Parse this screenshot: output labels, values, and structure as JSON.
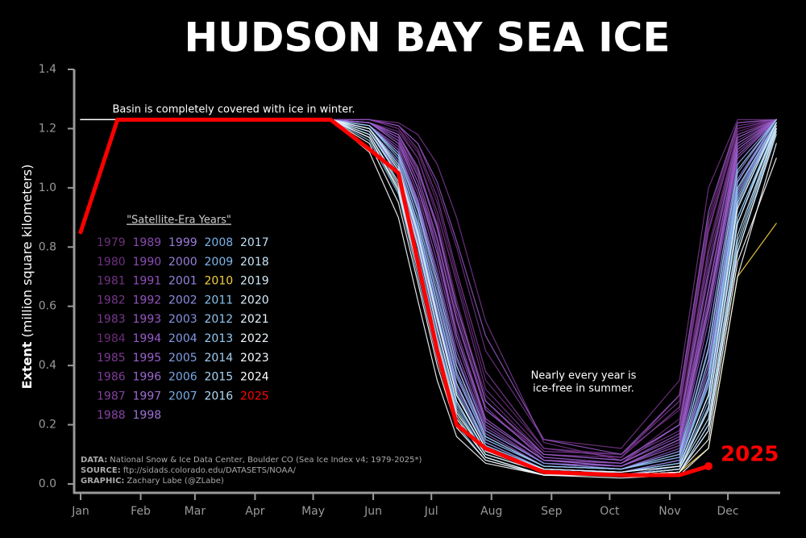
{
  "chart_data": {
    "type": "line",
    "title": "HUDSON BAY SEA ICE",
    "ylabel_bold": "Extent",
    "ylabel": "(million square kilometers)",
    "annotations": [
      "Basin is completely covered with ice in winter.",
      "Nearly every year is",
      "ice-free in summer."
    ],
    "legend_title": "\"Satellite-Era Years\"",
    "credits": [
      {
        "label": "DATA:",
        "text": "National Snow & Ice Data Center, Boulder CO (Sea Ice Index v4; 1979-2025*)"
      },
      {
        "label": "SOURCE:",
        "text": "ftp://sidads.colorado.edu/DATASETS/NOAA/"
      },
      {
        "label": "GRAPHIC:",
        "text": "Zachary Labe (@ZLabe)"
      }
    ],
    "xlim": [
      -2,
      362
    ],
    "xticks": [
      {
        "value": 1,
        "label": "Jan"
      },
      {
        "value": 32,
        "label": "Feb"
      },
      {
        "value": 60,
        "label": "Mar"
      },
      {
        "value": 91,
        "label": "Apr"
      },
      {
        "value": 121,
        "label": "May"
      },
      {
        "value": 152,
        "label": "Jun"
      },
      {
        "value": 182,
        "label": "Jul"
      },
      {
        "value": 213,
        "label": "Aug"
      },
      {
        "value": 244,
        "label": "Sep"
      },
      {
        "value": 274,
        "label": "Oct"
      },
      {
        "value": 305,
        "label": "Nov"
      },
      {
        "value": 335,
        "label": "Dec"
      }
    ],
    "ylim": [
      0,
      1.4
    ],
    "yticks": [
      {
        "value": 0,
        "label": "0.0"
      },
      0.2,
      0.4,
      0.6,
      0.8,
      {
        "value": 1,
        "label": "1.0"
      },
      1.2,
      1.4
    ],
    "x": [
      1,
      20,
      130,
      150,
      165,
      175,
      185,
      195,
      210,
      240,
      280,
      310,
      325,
      340,
      360
    ],
    "series": [
      {
        "name": "1979",
        "color": "#6b2f7a",
        "values": [
          1.23,
          1.23,
          1.23,
          1.23,
          1.2,
          1.12,
          0.95,
          0.7,
          0.35,
          0.12,
          0.1,
          0.25,
          0.85,
          1.2,
          1.23
        ]
      },
      {
        "name": "1980",
        "color": "#6e2f80",
        "values": [
          1.23,
          1.23,
          1.23,
          1.22,
          1.18,
          1.05,
          0.88,
          0.6,
          0.3,
          0.1,
          0.09,
          0.3,
          0.9,
          1.22,
          1.23
        ]
      },
      {
        "name": "1981",
        "color": "#723385",
        "values": [
          1.23,
          1.23,
          1.23,
          1.23,
          1.21,
          1.15,
          1.0,
          0.8,
          0.45,
          0.15,
          0.12,
          0.35,
          1.0,
          1.23,
          1.23
        ]
      },
      {
        "name": "1982",
        "color": "#75358a",
        "values": [
          1.23,
          1.23,
          1.23,
          1.23,
          1.22,
          1.18,
          1.08,
          0.9,
          0.55,
          0.14,
          0.08,
          0.2,
          0.75,
          1.18,
          1.23
        ]
      },
      {
        "name": "1983",
        "color": "#78378f",
        "values": [
          1.23,
          1.23,
          1.23,
          1.22,
          1.19,
          1.1,
          0.92,
          0.68,
          0.32,
          0.11,
          0.1,
          0.28,
          0.88,
          1.21,
          1.23
        ]
      },
      {
        "name": "1984",
        "color": "#6a2c78",
        "values": [
          1.23,
          1.23,
          1.23,
          1.23,
          1.2,
          1.1,
          0.9,
          0.62,
          0.28,
          0.09,
          0.07,
          0.22,
          0.8,
          1.19,
          1.23
        ]
      },
      {
        "name": "1985",
        "color": "#7c3a94",
        "values": [
          1.23,
          1.23,
          1.23,
          1.22,
          1.17,
          1.02,
          0.82,
          0.55,
          0.25,
          0.1,
          0.08,
          0.18,
          0.7,
          1.16,
          1.23
        ]
      },
      {
        "name": "1986",
        "color": "#7f3c99",
        "values": [
          1.23,
          1.23,
          1.23,
          1.23,
          1.21,
          1.13,
          0.97,
          0.72,
          0.38,
          0.12,
          0.09,
          0.26,
          0.86,
          1.2,
          1.23
        ]
      },
      {
        "name": "1987",
        "color": "#82409e",
        "values": [
          1.23,
          1.23,
          1.23,
          1.22,
          1.18,
          1.06,
          0.86,
          0.58,
          0.26,
          0.08,
          0.07,
          0.2,
          0.78,
          1.18,
          1.23
        ]
      },
      {
        "name": "1988",
        "color": "#8543a3",
        "values": [
          1.23,
          1.23,
          1.23,
          1.22,
          1.16,
          1.0,
          0.8,
          0.52,
          0.22,
          0.08,
          0.06,
          0.15,
          0.65,
          1.15,
          1.23
        ]
      },
      {
        "name": "1989",
        "color": "#8a48b0",
        "values": [
          1.23,
          1.23,
          1.23,
          1.21,
          1.14,
          0.98,
          0.75,
          0.48,
          0.2,
          0.07,
          0.06,
          0.14,
          0.6,
          1.12,
          1.23
        ]
      },
      {
        "name": "1990",
        "color": "#8d4cb6",
        "values": [
          1.23,
          1.23,
          1.23,
          1.22,
          1.16,
          1.02,
          0.8,
          0.5,
          0.22,
          0.08,
          0.07,
          0.16,
          0.62,
          1.14,
          1.23
        ]
      },
      {
        "name": "1991",
        "color": "#904fbb",
        "values": [
          1.23,
          1.23,
          1.23,
          1.21,
          1.12,
          0.95,
          0.7,
          0.42,
          0.18,
          0.07,
          0.05,
          0.12,
          0.55,
          1.1,
          1.23
        ]
      },
      {
        "name": "1992",
        "color": "#9353c0",
        "values": [
          1.23,
          1.23,
          1.23,
          1.23,
          1.21,
          1.15,
          1.02,
          0.82,
          0.5,
          0.15,
          0.1,
          0.3,
          0.92,
          1.22,
          1.23
        ]
      },
      {
        "name": "1993",
        "color": "#9657c4",
        "values": [
          1.23,
          1.23,
          1.23,
          1.21,
          1.13,
          0.96,
          0.72,
          0.45,
          0.19,
          0.07,
          0.06,
          0.13,
          0.58,
          1.11,
          1.23
        ]
      },
      {
        "name": "1994",
        "color": "#985bc8",
        "values": [
          1.23,
          1.23,
          1.23,
          1.22,
          1.17,
          1.04,
          0.83,
          0.56,
          0.25,
          0.09,
          0.07,
          0.17,
          0.66,
          1.15,
          1.23
        ]
      },
      {
        "name": "1995",
        "color": "#9a60cc",
        "values": [
          1.23,
          1.23,
          1.23,
          1.21,
          1.12,
          0.94,
          0.68,
          0.4,
          0.17,
          0.06,
          0.05,
          0.11,
          0.5,
          1.08,
          1.23
        ]
      },
      {
        "name": "1996",
        "color": "#9c65d0",
        "values": [
          1.23,
          1.23,
          1.23,
          1.22,
          1.18,
          1.07,
          0.87,
          0.6,
          0.28,
          0.1,
          0.08,
          0.2,
          0.72,
          1.17,
          1.23
        ]
      },
      {
        "name": "1997",
        "color": "#9d6ad3",
        "values": [
          1.23,
          1.23,
          1.23,
          1.22,
          1.15,
          1.0,
          0.78,
          0.5,
          0.21,
          0.08,
          0.06,
          0.15,
          0.6,
          1.13,
          1.23
        ]
      },
      {
        "name": "1998",
        "color": "#9e70d6",
        "values": [
          1.23,
          1.23,
          1.23,
          1.2,
          1.08,
          0.88,
          0.6,
          0.33,
          0.14,
          0.05,
          0.04,
          0.08,
          0.4,
          1.02,
          1.22
        ]
      },
      {
        "name": "1999",
        "color": "#9b7ad9",
        "values": [
          1.23,
          1.23,
          1.23,
          1.19,
          1.05,
          0.82,
          0.55,
          0.3,
          0.12,
          0.05,
          0.04,
          0.07,
          0.35,
          0.98,
          1.22
        ]
      },
      {
        "name": "2000",
        "color": "#977fdc",
        "values": [
          1.23,
          1.23,
          1.23,
          1.2,
          1.09,
          0.9,
          0.63,
          0.36,
          0.15,
          0.06,
          0.05,
          0.09,
          0.42,
          1.03,
          1.23
        ]
      },
      {
        "name": "2001",
        "color": "#9286de",
        "values": [
          1.23,
          1.23,
          1.23,
          1.19,
          1.06,
          0.85,
          0.58,
          0.32,
          0.13,
          0.05,
          0.04,
          0.08,
          0.38,
          1.0,
          1.22
        ]
      },
      {
        "name": "2002",
        "color": "#8d8ce0",
        "values": [
          1.23,
          1.23,
          1.23,
          1.21,
          1.11,
          0.92,
          0.66,
          0.38,
          0.16,
          0.06,
          0.05,
          0.1,
          0.45,
          1.05,
          1.23
        ]
      },
      {
        "name": "2003",
        "color": "#8893e2",
        "values": [
          1.23,
          1.23,
          1.23,
          1.2,
          1.08,
          0.87,
          0.6,
          0.34,
          0.14,
          0.05,
          0.04,
          0.07,
          0.36,
          0.99,
          1.22
        ]
      },
      {
        "name": "2004",
        "color": "#8399e4",
        "values": [
          1.23,
          1.23,
          1.23,
          1.21,
          1.12,
          0.95,
          0.7,
          0.43,
          0.18,
          0.07,
          0.05,
          0.11,
          0.5,
          1.08,
          1.23
        ]
      },
      {
        "name": "2005",
        "color": "#7e9fe5",
        "values": [
          1.23,
          1.23,
          1.23,
          1.19,
          1.04,
          0.8,
          0.52,
          0.28,
          0.11,
          0.04,
          0.03,
          0.06,
          0.3,
          0.94,
          1.21
        ]
      },
      {
        "name": "2006",
        "color": "#7aa5e7",
        "values": [
          1.23,
          1.23,
          1.23,
          1.18,
          1.02,
          0.78,
          0.5,
          0.26,
          0.1,
          0.04,
          0.03,
          0.05,
          0.28,
          0.9,
          1.2
        ]
      },
      {
        "name": "2007",
        "color": "#78abe8",
        "values": [
          1.23,
          1.23,
          1.23,
          1.19,
          1.05,
          0.83,
          0.56,
          0.3,
          0.12,
          0.04,
          0.04,
          0.07,
          0.33,
          0.96,
          1.22
        ]
      },
      {
        "name": "2008",
        "color": "#7ab2ea",
        "values": [
          1.23,
          1.23,
          1.23,
          1.2,
          1.07,
          0.86,
          0.58,
          0.31,
          0.12,
          0.05,
          0.04,
          0.07,
          0.34,
          0.97,
          1.22
        ]
      },
      {
        "name": "2009",
        "color": "#7fb8ec",
        "values": [
          1.23,
          1.23,
          1.23,
          1.21,
          1.1,
          0.9,
          0.64,
          0.37,
          0.15,
          0.06,
          0.05,
          0.09,
          0.42,
          1.02,
          1.23
        ]
      },
      {
        "name": "2010",
        "color": "#f5d142",
        "values": [
          1.23,
          1.23,
          1.23,
          1.17,
          1.0,
          0.74,
          0.46,
          0.24,
          0.1,
          0.04,
          0.03,
          0.04,
          0.12,
          0.7,
          0.88
        ]
      },
      {
        "name": "2011",
        "color": "#88c2ee",
        "values": [
          1.23,
          1.23,
          1.23,
          1.19,
          1.04,
          0.8,
          0.52,
          0.27,
          0.11,
          0.04,
          0.03,
          0.05,
          0.25,
          0.9,
          1.21
        ]
      },
      {
        "name": "2012",
        "color": "#8fc6f0",
        "values": [
          1.23,
          1.23,
          1.23,
          1.16,
          0.98,
          0.7,
          0.42,
          0.2,
          0.08,
          0.03,
          0.03,
          0.04,
          0.2,
          0.82,
          1.2
        ]
      },
      {
        "name": "2013",
        "color": "#97cbf2",
        "values": [
          1.23,
          1.23,
          1.23,
          1.2,
          1.08,
          0.88,
          0.61,
          0.34,
          0.13,
          0.05,
          0.04,
          0.07,
          0.36,
          1.0,
          1.22
        ]
      },
      {
        "name": "2014",
        "color": "#a0d0f3",
        "values": [
          1.23,
          1.23,
          1.23,
          1.21,
          1.11,
          0.93,
          0.68,
          0.4,
          0.16,
          0.06,
          0.05,
          0.1,
          0.46,
          1.06,
          1.23
        ]
      },
      {
        "name": "2015",
        "color": "#a9d5f5",
        "values": [
          1.23,
          1.23,
          1.23,
          1.18,
          1.02,
          0.77,
          0.49,
          0.25,
          0.1,
          0.04,
          0.03,
          0.05,
          0.26,
          0.88,
          1.2
        ]
      },
      {
        "name": "2016",
        "color": "#b3daf6",
        "values": [
          1.23,
          1.23,
          1.23,
          1.17,
          0.99,
          0.72,
          0.44,
          0.22,
          0.09,
          0.03,
          0.03,
          0.04,
          0.18,
          0.78,
          1.18
        ]
      },
      {
        "name": "2017",
        "color": "#bddff7",
        "values": [
          1.23,
          1.23,
          1.23,
          1.17,
          1.0,
          0.74,
          0.46,
          0.23,
          0.09,
          0.03,
          0.03,
          0.04,
          0.2,
          0.8,
          1.2
        ]
      },
      {
        "name": "2018",
        "color": "#c7e4f8",
        "values": [
          1.23,
          1.23,
          1.23,
          1.2,
          1.07,
          0.85,
          0.57,
          0.3,
          0.12,
          0.04,
          0.04,
          0.06,
          0.3,
          0.95,
          1.22
        ]
      },
      {
        "name": "2019",
        "color": "#d1e9fa",
        "values": [
          1.23,
          1.23,
          1.23,
          1.18,
          1.01,
          0.76,
          0.48,
          0.24,
          0.1,
          0.04,
          0.03,
          0.05,
          0.22,
          0.84,
          1.2
        ]
      },
      {
        "name": "2020",
        "color": "#dbeefb",
        "values": [
          1.23,
          1.23,
          1.23,
          1.19,
          1.04,
          0.81,
          0.53,
          0.28,
          0.11,
          0.04,
          0.03,
          0.05,
          0.25,
          0.88,
          1.21
        ]
      },
      {
        "name": "2021",
        "color": "#e5f3fc",
        "values": [
          1.23,
          1.23,
          1.23,
          1.17,
          0.99,
          0.73,
          0.45,
          0.22,
          0.09,
          0.03,
          0.03,
          0.04,
          0.18,
          0.78,
          1.19
        ]
      },
      {
        "name": "2022",
        "color": "#eef8fd",
        "values": [
          1.23,
          1.23,
          1.23,
          1.2,
          1.06,
          0.84,
          0.56,
          0.3,
          0.12,
          0.05,
          0.04,
          0.06,
          0.3,
          0.93,
          1.22
        ]
      },
      {
        "name": "2023",
        "color": "#f6fbfe",
        "values": [
          1.23,
          1.23,
          1.23,
          1.12,
          0.9,
          0.62,
          0.35,
          0.16,
          0.07,
          0.03,
          0.02,
          0.03,
          0.12,
          0.7,
          1.15
        ]
      },
      {
        "name": "2024",
        "color": "#ffffff",
        "values": [
          1.23,
          1.23,
          1.23,
          1.15,
          0.95,
          0.68,
          0.4,
          0.19,
          0.08,
          0.03,
          0.03,
          0.04,
          0.15,
          0.75,
          1.1
        ]
      },
      {
        "name": "2025",
        "color": "#ff0000",
        "values": [
          0.85,
          1.23,
          1.23,
          1.13,
          1.05,
          0.75,
          0.45,
          0.2,
          0.12,
          0.04,
          0.03,
          0.03,
          0.06,
          null,
          null
        ]
      }
    ]
  }
}
